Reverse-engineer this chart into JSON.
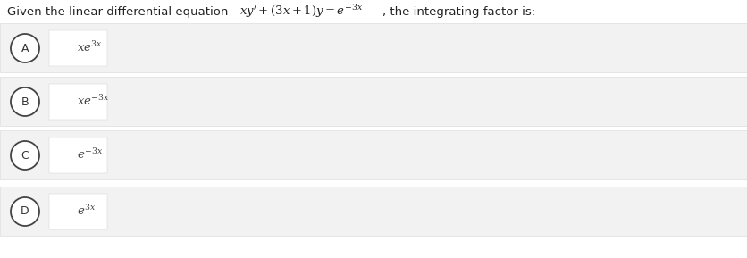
{
  "background_color": "#ffffff",
  "page_bg": "#f5f5f5",
  "options": [
    {
      "label": "A",
      "math": "$xe^{3x}$"
    },
    {
      "label": "B",
      "math": "$xe^{-3x}$"
    },
    {
      "label": "C",
      "math": "$e^{-3x}$"
    },
    {
      "label": "D",
      "math": "$e^{3x}$"
    }
  ],
  "row_bg": "#f2f2f2",
  "row_edge": "#dddddd",
  "white_box_color": "#ffffff",
  "white_box_edge": "#cccccc",
  "circle_facecolor": "#ffffff",
  "circle_edgecolor": "#444444",
  "label_color": "#333333",
  "math_color": "#444444",
  "question_color": "#222222",
  "figsize": [
    8.36,
    2.89
  ],
  "dpi": 100,
  "question_plain1": "Given the linear differential equation ",
  "question_math": "$xy'+(3x+1)y=e^{-3x}$",
  "question_plain2": ", the integrating factor is:"
}
